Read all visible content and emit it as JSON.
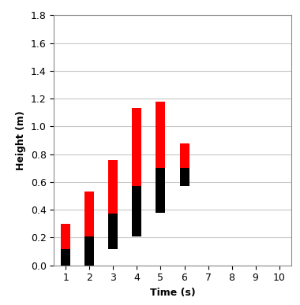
{
  "chart_data": {
    "type": "bar",
    "stacked": true,
    "xlabel": "Time (s)",
    "ylabel": "Height (m)",
    "x": [
      1,
      2,
      3,
      4,
      5,
      6
    ],
    "base": [
      0,
      0,
      0.12,
      0.21,
      0.38,
      0.57
    ],
    "series": [
      {
        "color": "#000000",
        "values": [
          0.12,
          0.21,
          0.25,
          0.36,
          0.32,
          0.13
        ]
      },
      {
        "color": "#ff0000",
        "values": [
          0.18,
          0.32,
          0.39,
          0.56,
          0.48,
          0.18
        ]
      }
    ],
    "xlim": [
      0.5,
      10.5
    ],
    "xticks": [
      1,
      2,
      3,
      4,
      5,
      6,
      7,
      8,
      9,
      10
    ],
    "ylim": [
      0,
      1.8
    ],
    "yticks": [
      {
        "value": 0,
        "label": "0.0"
      },
      {
        "value": 0.2,
        "label": "0.2"
      },
      {
        "value": 0.4,
        "label": "0.4"
      },
      {
        "value": 0.6,
        "label": "0.6"
      },
      {
        "value": 0.8,
        "label": "0.8"
      },
      {
        "value": 1.0,
        "label": "1.0"
      },
      {
        "value": 1.2,
        "label": "1.2"
      },
      {
        "value": 1.4,
        "label": "1.4"
      },
      {
        "value": 1.6,
        "label": "1.6"
      },
      {
        "value": 1.8,
        "label": "1.8"
      }
    ],
    "grid": true
  }
}
